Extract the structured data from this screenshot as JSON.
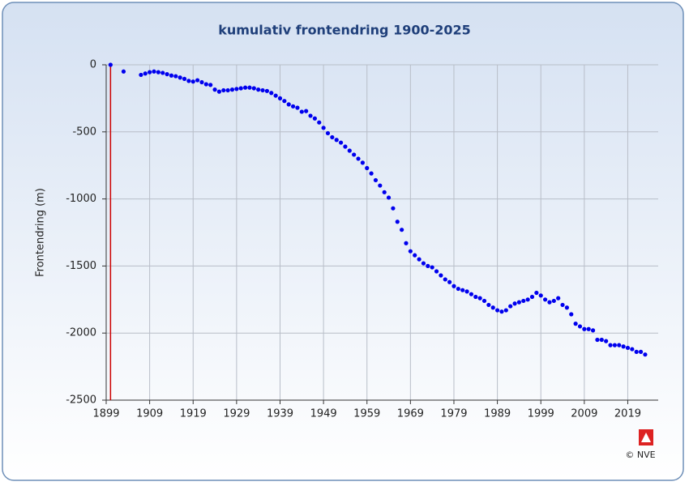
{
  "chart_data": {
    "type": "scatter",
    "title": "kumulativ frontendring 1900-2025",
    "ylabel": "Frontendring (m)",
    "credit": "© NVE",
    "color": "#0000ee",
    "grid": true,
    "reference_line": {
      "x": 1900,
      "color": "#cc0000"
    },
    "xlim": [
      1899,
      2026
    ],
    "xticks": [
      1899,
      1909,
      1919,
      1929,
      1939,
      1949,
      1959,
      1969,
      1979,
      1989,
      1999,
      2009,
      2019
    ],
    "ylim": [
      -2500,
      0
    ],
    "yticks": [
      0,
      -500,
      -1000,
      -1500,
      -2000,
      -2500
    ],
    "x": [
      1900,
      1903,
      1907,
      1908,
      1909,
      1910,
      1911,
      1912,
      1913,
      1914,
      1915,
      1916,
      1917,
      1918,
      1919,
      1920,
      1921,
      1922,
      1923,
      1924,
      1925,
      1926,
      1927,
      1928,
      1929,
      1930,
      1931,
      1932,
      1933,
      1934,
      1935,
      1936,
      1937,
      1938,
      1939,
      1940,
      1941,
      1942,
      1943,
      1944,
      1945,
      1946,
      1947,
      1948,
      1949,
      1950,
      1951,
      1952,
      1953,
      1954,
      1955,
      1956,
      1957,
      1958,
      1959,
      1960,
      1961,
      1962,
      1963,
      1964,
      1965,
      1966,
      1967,
      1968,
      1969,
      1970,
      1971,
      1972,
      1973,
      1974,
      1975,
      1976,
      1977,
      1978,
      1979,
      1980,
      1981,
      1982,
      1983,
      1984,
      1985,
      1986,
      1987,
      1988,
      1989,
      1990,
      1991,
      1992,
      1993,
      1994,
      1995,
      1996,
      1997,
      1998,
      1999,
      2000,
      2001,
      2002,
      2003,
      2004,
      2005,
      2006,
      2007,
      2008,
      2009,
      2010,
      2011,
      2012,
      2013,
      2014,
      2015,
      2016,
      2017,
      2018,
      2019,
      2020,
      2021,
      2022,
      2023
    ],
    "values": [
      0,
      -50,
      -75,
      -65,
      -55,
      -50,
      -55,
      -60,
      -70,
      -80,
      -85,
      -95,
      -105,
      -120,
      -125,
      -115,
      -130,
      -145,
      -150,
      -185,
      -200,
      -190,
      -190,
      -185,
      -180,
      -175,
      -170,
      -170,
      -175,
      -185,
      -190,
      -195,
      -210,
      -230,
      -250,
      -270,
      -295,
      -310,
      -320,
      -350,
      -345,
      -380,
      -400,
      -430,
      -470,
      -510,
      -540,
      -560,
      -580,
      -610,
      -640,
      -670,
      -700,
      -730,
      -770,
      -810,
      -860,
      -900,
      -950,
      -990,
      -1070,
      -1170,
      -1230,
      -1330,
      -1390,
      -1420,
      -1450,
      -1480,
      -1500,
      -1510,
      -1540,
      -1570,
      -1600,
      -1620,
      -1650,
      -1670,
      -1680,
      -1690,
      -1710,
      -1730,
      -1740,
      -1760,
      -1790,
      -1810,
      -1830,
      -1840,
      -1830,
      -1800,
      -1780,
      -1770,
      -1760,
      -1750,
      -1730,
      -1700,
      -1720,
      -1750,
      -1770,
      -1760,
      -1740,
      -1790,
      -1810,
      -1860,
      -1930,
      -1950,
      -1970,
      -1970,
      -1980,
      -2050,
      -2050,
      -2060,
      -2090,
      -2090,
      -2090,
      -2100,
      -2110,
      -2120,
      -2140,
      -2140,
      -2160
    ]
  }
}
